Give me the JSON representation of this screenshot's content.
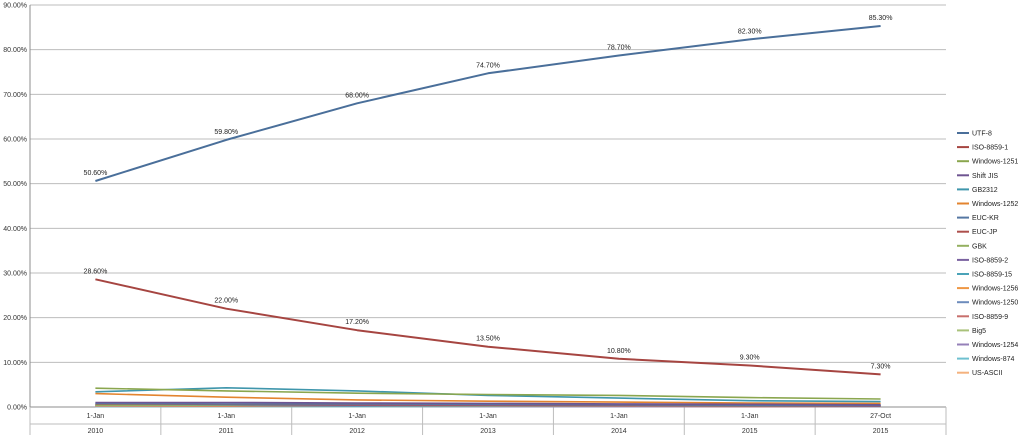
{
  "chart_data": {
    "type": "line",
    "title": "",
    "xlabel": "",
    "ylabel": "",
    "ylim": [
      0,
      90
    ],
    "yticks": [
      "0.00%",
      "10.00%",
      "20.00%",
      "30.00%",
      "40.00%",
      "50.00%",
      "60.00%",
      "70.00%",
      "80.00%",
      "90.00%"
    ],
    "categories": [
      {
        "day": "1-Jan",
        "year": "2010"
      },
      {
        "day": "1-Jan",
        "year": "2011"
      },
      {
        "day": "1-Jan",
        "year": "2012"
      },
      {
        "day": "1-Jan",
        "year": "2013"
      },
      {
        "day": "1-Jan",
        "year": "2014"
      },
      {
        "day": "1-Jan",
        "year": "2015"
      },
      {
        "day": "27-Oct",
        "year": "2015"
      }
    ],
    "grid": true,
    "legend_position": "right",
    "series": [
      {
        "name": "UTF-8",
        "color": "#4a6f9a",
        "values": [
          50.6,
          59.8,
          68.0,
          74.7,
          78.7,
          82.3,
          85.3
        ],
        "labels": [
          "50.60%",
          "59.80%",
          "68.00%",
          "74.70%",
          "78.70%",
          "82.30%",
          "85.30%"
        ]
      },
      {
        "name": "ISO-8859-1",
        "color": "#a64541",
        "values": [
          28.6,
          22.0,
          17.2,
          13.5,
          10.8,
          9.3,
          7.3
        ],
        "labels": [
          "28.60%",
          "22.00%",
          "17.20%",
          "13.50%",
          "10.80%",
          "9.30%",
          "7.30%"
        ]
      },
      {
        "name": "Windows-1251",
        "color": "#8aa64e",
        "values": [
          4.2,
          3.6,
          3.1,
          2.8,
          2.6,
          2.1,
          1.8
        ]
      },
      {
        "name": "Shift JIS",
        "color": "#6e5491",
        "values": [
          1.0,
          1.0,
          0.9,
          0.8,
          0.7,
          0.6,
          0.5
        ]
      },
      {
        "name": "GB2312",
        "color": "#3f96ac",
        "values": [
          3.4,
          4.3,
          3.6,
          2.6,
          2.0,
          1.4,
          1.2
        ]
      },
      {
        "name": "Windows-1252",
        "color": "#e3842f",
        "values": [
          3.0,
          2.2,
          1.6,
          1.3,
          1.1,
          0.9,
          0.8
        ]
      },
      {
        "name": "EUC-KR",
        "color": "#5577a3",
        "values": [
          0.8,
          0.7,
          0.7,
          0.6,
          0.5,
          0.4,
          0.4
        ]
      },
      {
        "name": "EUC-JP",
        "color": "#ad4f4c",
        "values": [
          0.7,
          0.6,
          0.5,
          0.5,
          0.4,
          0.3,
          0.3
        ]
      },
      {
        "name": "GBK",
        "color": "#94b060",
        "values": [
          0.4,
          0.5,
          0.6,
          0.6,
          0.5,
          0.5,
          0.4
        ]
      },
      {
        "name": "ISO-8859-2",
        "color": "#7a62a0",
        "values": [
          0.6,
          0.5,
          0.4,
          0.4,
          0.3,
          0.3,
          0.2
        ]
      },
      {
        "name": "ISO-8859-15",
        "color": "#4aa3b8",
        "values": [
          0.5,
          0.4,
          0.3,
          0.3,
          0.3,
          0.2,
          0.2
        ]
      },
      {
        "name": "Windows-1256",
        "color": "#ee9744",
        "values": [
          0.3,
          0.3,
          0.3,
          0.2,
          0.2,
          0.2,
          0.2
        ]
      },
      {
        "name": "Windows-1250",
        "color": "#6d8cbc",
        "values": [
          0.3,
          0.3,
          0.2,
          0.2,
          0.2,
          0.2,
          0.1
        ]
      },
      {
        "name": "ISO-8859-9",
        "color": "#c86f6c",
        "values": [
          0.3,
          0.2,
          0.2,
          0.2,
          0.2,
          0.1,
          0.1
        ]
      },
      {
        "name": "Big5",
        "color": "#a9c27a",
        "values": [
          0.4,
          0.3,
          0.3,
          0.2,
          0.2,
          0.2,
          0.1
        ]
      },
      {
        "name": "Windows-1254",
        "color": "#9580b8",
        "values": [
          0.2,
          0.2,
          0.2,
          0.1,
          0.1,
          0.1,
          0.1
        ]
      },
      {
        "name": "Windows-874",
        "color": "#6ec0d0",
        "values": [
          0.1,
          0.1,
          0.1,
          0.1,
          0.1,
          0.1,
          0.1
        ]
      },
      {
        "name": "US-ASCII",
        "color": "#f4b27e",
        "values": [
          0.2,
          0.1,
          0.1,
          0.1,
          0.1,
          0.1,
          0.1
        ]
      }
    ]
  }
}
